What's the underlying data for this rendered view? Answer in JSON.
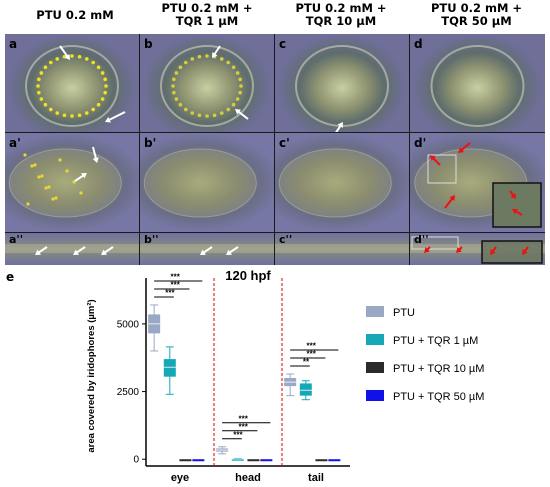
{
  "column_headers": [
    "PTU 0.2 mM",
    "PTU 0.2 mM +\nTQR 1 µM",
    "PTU 0.2 mM +\nTQR 10 µM",
    "PTU 0.2 mM +\nTQR 50 µM"
  ],
  "panel_labels": {
    "row1": [
      "a",
      "b",
      "c",
      "d"
    ],
    "row2": [
      "a'",
      "b'",
      "c'",
      "d'"
    ],
    "row3": [
      "a''",
      "b''",
      "c''",
      "d''"
    ]
  },
  "panel_e_label": "e",
  "colors": {
    "ptu": "#9aa8c6",
    "tqr1": "#17a8b8",
    "tqr10": "#2a2a2a",
    "tqr50": "#1010e8",
    "arrow_white": "#ffffff",
    "arrow_red": "#ee1111",
    "divider": "#e00000"
  },
  "chart_data": {
    "type": "box",
    "title": "120 hpf",
    "ylabel": "area covered by iridophores  (µm²)",
    "categories": [
      "eye",
      "head",
      "tail"
    ],
    "yticks": [
      0,
      2500,
      5000
    ],
    "ylim": [
      -250,
      6400
    ],
    "legend_position": "right",
    "series": [
      {
        "name": "PTU",
        "color": "#9aa8c6",
        "boxes": [
          {
            "min": 4000,
            "q1": 4650,
            "median": 5000,
            "q3": 5350,
            "max": 5700
          },
          {
            "min": 200,
            "q1": 280,
            "median": 340,
            "q3": 400,
            "max": 460
          },
          {
            "min": 2350,
            "q1": 2700,
            "median": 2850,
            "q3": 3000,
            "max": 3150
          }
        ]
      },
      {
        "name": "PTU + TQR 1 µM",
        "color": "#17a8b8",
        "boxes": [
          {
            "min": 2400,
            "q1": 3050,
            "median": 3400,
            "q3": 3700,
            "max": 4150
          },
          {
            "min": 0,
            "q1": 0,
            "median": 10,
            "q3": 20,
            "max": 30
          },
          {
            "min": 2200,
            "q1": 2350,
            "median": 2550,
            "q3": 2800,
            "max": 2900
          }
        ]
      },
      {
        "name": "PTU + TQR 10 µM",
        "color": "#2a2a2a",
        "boxes": [
          {
            "min": 0,
            "q1": 0,
            "median": 0,
            "q3": 0,
            "max": 0
          },
          {
            "min": 0,
            "q1": 0,
            "median": 0,
            "q3": 0,
            "max": 0
          },
          {
            "min": 0,
            "q1": 0,
            "median": 0,
            "q3": 0,
            "max": 0
          }
        ]
      },
      {
        "name": "PTU + TQR 50 µM",
        "color": "#1010e8",
        "boxes": [
          {
            "min": 0,
            "q1": 0,
            "median": 0,
            "q3": 0,
            "max": 0
          },
          {
            "min": 0,
            "q1": 0,
            "median": 0,
            "q3": 0,
            "max": 0
          },
          {
            "min": 0,
            "q1": 0,
            "median": 0,
            "q3": 0,
            "max": 0
          }
        ]
      }
    ],
    "significance": [
      {
        "category": "eye",
        "to_series": "PTU + TQR 1 µM",
        "label": "***"
      },
      {
        "category": "eye",
        "to_series": "PTU + TQR 10 µM",
        "label": "***"
      },
      {
        "category": "eye",
        "to_series": "PTU + TQR 50 µM",
        "label": "***"
      },
      {
        "category": "head",
        "to_series": "PTU + TQR 1 µM",
        "label": "***"
      },
      {
        "category": "head",
        "to_series": "PTU + TQR 10 µM",
        "label": "***"
      },
      {
        "category": "head",
        "to_series": "PTU + TQR 50 µM",
        "label": "***"
      },
      {
        "category": "tail",
        "to_series": "PTU + TQR 1 µM",
        "label": "**"
      },
      {
        "category": "tail",
        "to_series": "PTU + TQR 10 µM",
        "label": "***"
      },
      {
        "category": "tail",
        "to_series": "PTU + TQR 50 µM",
        "label": "***"
      }
    ]
  }
}
